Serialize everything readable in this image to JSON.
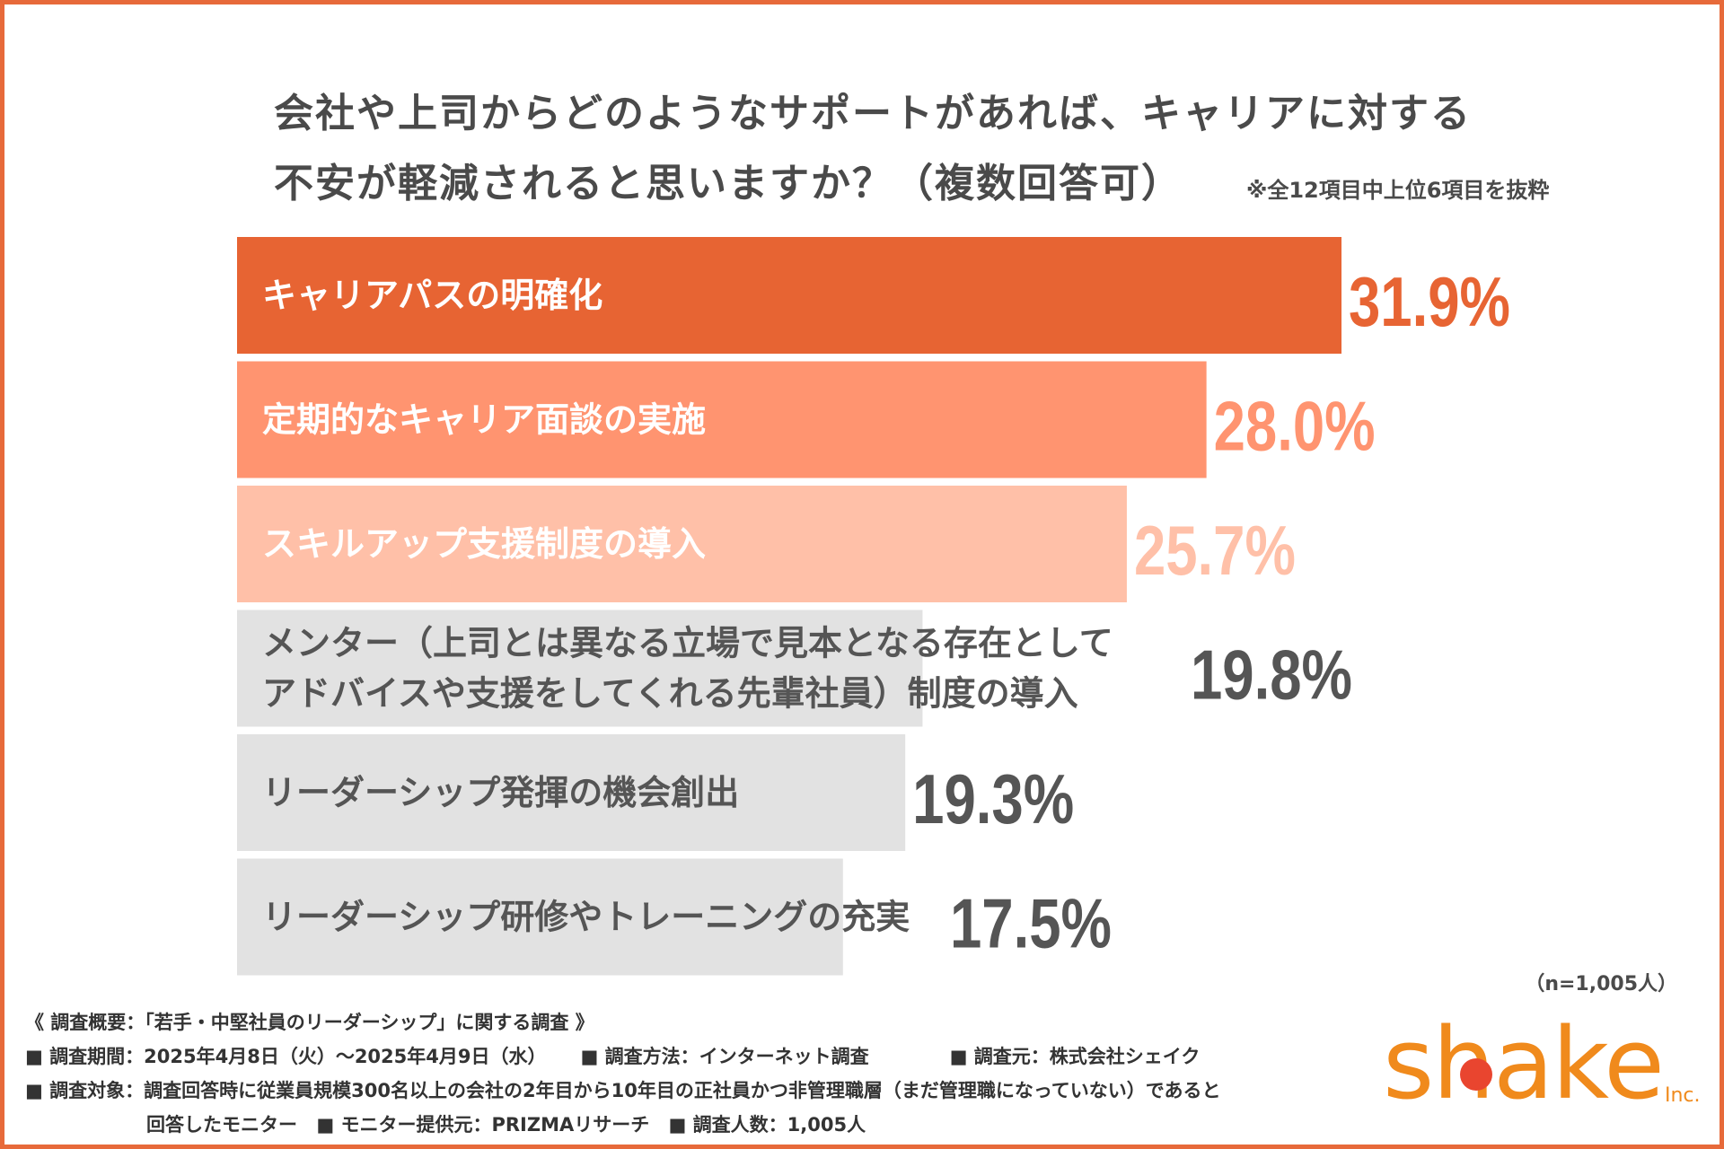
{
  "title": {
    "line1": "会社や上司からどのようなサポートがあれば、キャリアに対する",
    "line2": "不安が軽減されると思いますか？（複数回答可）"
  },
  "note": "※全12項目中上位6項目を抜粋",
  "n_note": "（n=1,005人）",
  "colors": {
    "border": "#e76a3a",
    "bar1": "#e76433",
    "bar2": "#ff9470",
    "bar3": "#ffc0a8",
    "bar_gray": "#e2e2e2",
    "text_dark": "#555555"
  },
  "chart_data": {
    "type": "bar",
    "orientation": "horizontal",
    "categories": [
      "キャリアパスの明確化",
      "定期的なキャリア面談の実施",
      "スキルアップ支援制度の導入",
      "メンター（上司とは異なる立場で見本となる存在として\nアドバイスや支援をしてくれる先輩社員）制度の導入",
      "リーダーシップ発揮の機会創出",
      "リーダーシップ研修やトレーニングの充実"
    ],
    "values": [
      31.9,
      28.0,
      25.7,
      19.8,
      19.3,
      17.5
    ],
    "value_labels": [
      "31.9%",
      "28.0%",
      "25.7%",
      "19.8%",
      "19.3%",
      "17.5%"
    ],
    "unit": "%",
    "xlim": [
      0,
      40
    ]
  },
  "footer": {
    "overview": "《 調査概要：「若手・中堅社員のリーダーシップ」に関する調査 》",
    "period": "■ 調査期間：2025年4月8日（火）〜2025年4月9日（水）",
    "method": "■ 調査方法：インターネット調査",
    "source": "■ 調査元：株式会社シェイク",
    "target": "■ 調査対象：調査回答時に従業員規模300名以上の会社の2年目から10年目の正社員かつ非管理職層（まだ管理職になっていない）であると",
    "target2": "回答したモニター",
    "provider": "■ モニター提供元：PRIZMAリサーチ",
    "count": "■ 調査人数：1,005人"
  },
  "logo": {
    "text": "shake",
    "suffix": "Inc."
  }
}
